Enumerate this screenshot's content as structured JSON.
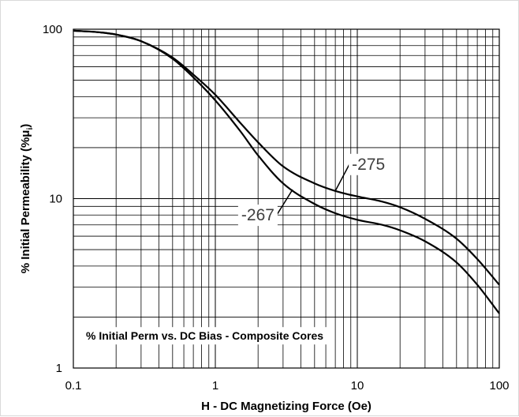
{
  "chart_data": {
    "type": "line",
    "title": "% Initial Perm vs. DC Bias - Composite Cores",
    "xlabel": "H - DC Magnetizing Force (Oe)",
    "ylabel_main": "% Initial Permeability (%μ",
    "ylabel_sub": "i",
    "ylabel_close": ")",
    "x_scale": "log",
    "y_scale": "log",
    "xlim": [
      0.1,
      100
    ],
    "ylim": [
      1,
      100
    ],
    "grid": true,
    "x_ticks": [
      "0.1",
      "1",
      "10",
      "100"
    ],
    "y_ticks": [
      "1",
      "10",
      "100"
    ],
    "series": [
      {
        "name": "-275",
        "x": [
          0.1,
          0.15,
          0.2,
          0.3,
          0.5,
          0.7,
          1,
          1.5,
          2,
          3,
          5,
          7,
          10,
          15,
          20,
          30,
          50,
          70,
          100
        ],
        "values": [
          98,
          96,
          93,
          85,
          68,
          54,
          41,
          28,
          21.5,
          15.5,
          12.3,
          11.1,
          10.3,
          9.6,
          8.9,
          7.6,
          5.8,
          4.4,
          3.1
        ]
      },
      {
        "name": "-267",
        "x": [
          0.1,
          0.15,
          0.2,
          0.3,
          0.5,
          0.7,
          1,
          1.5,
          2,
          3,
          5,
          7,
          10,
          15,
          20,
          30,
          50,
          70,
          100
        ],
        "values": [
          98,
          96,
          93,
          85,
          67,
          52,
          38,
          25,
          18,
          12.3,
          9.3,
          8.2,
          7.5,
          7.0,
          6.5,
          5.6,
          4.2,
          3.1,
          2.1
        ]
      }
    ],
    "annotations": [
      {
        "text": "-275",
        "series": 0,
        "x": 7
      },
      {
        "text": "-267",
        "series": 1,
        "x": 3.5
      }
    ]
  }
}
